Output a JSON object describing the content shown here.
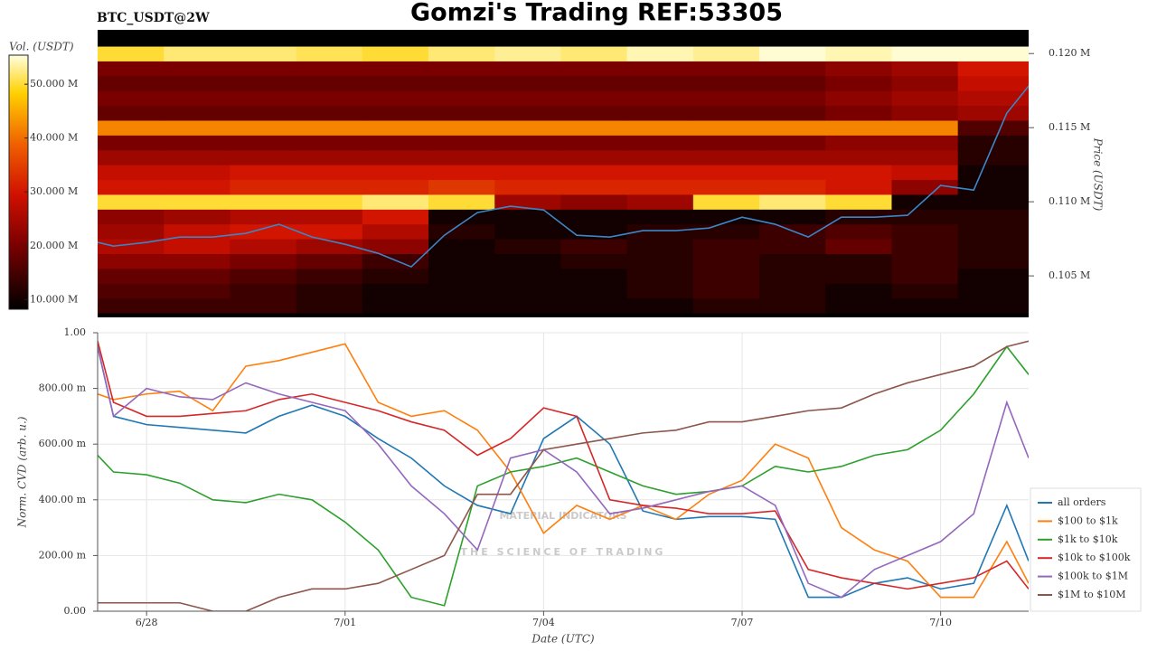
{
  "chart_data": [
    {
      "type": "heatmap",
      "title": "Gomzi's Trading REF:53305",
      "subtitle": "BTC_USDT@2W",
      "ylabel": "Price (USDT)",
      "colorbar_label": "Vol. (USDT)",
      "xlim": [
        -0.74,
        13.33
      ],
      "ylim": [
        102200,
        121600
      ],
      "yticks": [
        {
          "value": 105000,
          "label": "0.105 M"
        },
        {
          "value": 110000,
          "label": "0.110 M"
        },
        {
          "value": 115000,
          "label": "0.115 M"
        },
        {
          "value": 120000,
          "label": "0.120 M"
        }
      ],
      "zlim": [
        8200000,
        55400000
      ],
      "zticks": [
        {
          "value": 10000000,
          "label": "10.000 M"
        },
        {
          "value": 20000000,
          "label": "20.000 M"
        },
        {
          "value": 30000000,
          "label": "30.000 M"
        },
        {
          "value": 40000000,
          "label": "40.000 M"
        },
        {
          "value": 50000000,
          "label": "50.000 M"
        }
      ],
      "xbins": [
        -0.74,
        0.26,
        1.26,
        2.26,
        3.26,
        4.26,
        5.26,
        6.26,
        7.26,
        8.26,
        9.26,
        10.26,
        11.26,
        12.26,
        13.33
      ],
      "ybins": [
        102500,
        103500,
        104500,
        105500,
        106500,
        107500,
        108500,
        109500,
        110500,
        111500,
        112500,
        113500,
        114500,
        115500,
        116500,
        117500,
        118500,
        119500,
        120500,
        121500
      ],
      "z": [
        [
          14000000,
          14000000,
          14000000,
          12000000,
          10000000,
          10000000,
          10000000,
          10000000,
          10000000,
          12000000,
          12000000,
          10000000,
          10000000,
          10000000
        ],
        [
          16000000,
          16000000,
          14000000,
          12000000,
          10000000,
          10000000,
          10000000,
          10000000,
          12000000,
          14000000,
          12000000,
          10000000,
          12000000,
          10000000
        ],
        [
          18000000,
          18000000,
          16000000,
          14000000,
          12000000,
          10000000,
          10000000,
          10000000,
          12000000,
          14000000,
          12000000,
          12000000,
          14000000,
          10000000
        ],
        [
          22000000,
          22000000,
          20000000,
          18000000,
          14000000,
          10000000,
          10000000,
          12000000,
          12000000,
          14000000,
          12000000,
          12000000,
          14000000,
          12000000
        ],
        [
          26000000,
          28000000,
          26000000,
          24000000,
          22000000,
          10000000,
          12000000,
          14000000,
          12000000,
          14000000,
          14000000,
          18000000,
          14000000,
          12000000
        ],
        [
          24000000,
          28000000,
          30000000,
          30000000,
          26000000,
          12000000,
          10000000,
          10000000,
          12000000,
          12000000,
          14000000,
          16000000,
          14000000,
          12000000
        ],
        [
          22000000,
          24000000,
          26000000,
          26000000,
          30000000,
          10000000,
          10000000,
          10000000,
          10000000,
          10000000,
          10000000,
          12000000,
          12000000,
          12000000
        ],
        [
          50000000,
          50000000,
          50000000,
          50000000,
          52000000,
          50000000,
          24000000,
          22000000,
          24000000,
          50000000,
          52000000,
          50000000,
          10000000,
          10000000
        ],
        [
          30000000,
          30000000,
          32000000,
          32000000,
          32000000,
          34000000,
          32000000,
          32000000,
          32000000,
          32000000,
          32000000,
          30000000,
          22000000,
          10000000
        ],
        [
          28000000,
          28000000,
          30000000,
          30000000,
          30000000,
          30000000,
          30000000,
          30000000,
          30000000,
          30000000,
          30000000,
          30000000,
          28000000,
          10000000
        ],
        [
          24000000,
          24000000,
          24000000,
          24000000,
          24000000,
          24000000,
          24000000,
          24000000,
          24000000,
          24000000,
          24000000,
          24000000,
          24000000,
          12000000
        ],
        [
          20000000,
          20000000,
          20000000,
          20000000,
          20000000,
          20000000,
          20000000,
          20000000,
          20000000,
          20000000,
          20000000,
          22000000,
          22000000,
          12000000
        ],
        [
          42000000,
          42000000,
          42000000,
          42000000,
          42000000,
          42000000,
          42000000,
          42000000,
          42000000,
          42000000,
          42000000,
          42000000,
          42000000,
          16000000
        ],
        [
          18000000,
          18000000,
          18000000,
          18000000,
          18000000,
          18000000,
          18000000,
          18000000,
          18000000,
          18000000,
          18000000,
          20000000,
          22000000,
          24000000
        ],
        [
          20000000,
          20000000,
          20000000,
          20000000,
          20000000,
          20000000,
          20000000,
          20000000,
          20000000,
          20000000,
          20000000,
          22000000,
          24000000,
          26000000
        ],
        [
          18000000,
          18000000,
          18000000,
          18000000,
          18000000,
          18000000,
          18000000,
          18000000,
          18000000,
          18000000,
          18000000,
          20000000,
          22000000,
          28000000
        ],
        [
          20000000,
          20000000,
          20000000,
          20000000,
          20000000,
          20000000,
          20000000,
          20000000,
          20000000,
          20000000,
          20000000,
          22000000,
          24000000,
          30000000
        ],
        [
          50000000,
          52000000,
          52000000,
          51000000,
          50000000,
          52000000,
          53000000,
          52000000,
          54000000,
          53000000,
          55000000,
          54000000,
          55000000,
          55000000
        ],
        [
          8000000,
          8000000,
          8000000,
          8000000,
          8000000,
          8000000,
          8000000,
          8000000,
          8000000,
          8000000,
          8000000,
          8000000,
          8000000,
          8000000
        ]
      ],
      "line": {
        "color": "#3a86c8",
        "x": [
          -0.74,
          -0.5,
          0,
          0.5,
          1,
          1.5,
          2,
          2.5,
          3,
          3.5,
          4,
          4.5,
          5,
          5.5,
          6,
          6.5,
          7,
          7.5,
          8,
          8.5,
          9,
          9.5,
          10,
          10.5,
          11,
          11.5,
          12,
          12.5,
          13,
          13.33
        ],
        "values": [
          107260,
          107010,
          107260,
          107620,
          107620,
          107870,
          108480,
          107620,
          107130,
          106520,
          105610,
          107740,
          109270,
          109700,
          109450,
          107740,
          107620,
          108050,
          108050,
          108230,
          108960,
          108480,
          107620,
          108960,
          108960,
          109090,
          111100,
          110790,
          115980,
          117810
        ]
      }
    },
    {
      "type": "line",
      "xlabel": "Date (UTC)",
      "ylabel": "Norm. CVD (arb. u.)",
      "grid": true,
      "legend": "lower right",
      "annotations": [
        "MATERIAL INDICATORS",
        "THE SCIENCE OF TRADING"
      ],
      "xlim": [
        -0.74,
        13.33
      ],
      "ylim": [
        0,
        1
      ],
      "xticks": [
        {
          "value": 0,
          "label": "6/28"
        },
        {
          "value": 3,
          "label": "7/01"
        },
        {
          "value": 6,
          "label": "7/04"
        },
        {
          "value": 9,
          "label": "7/07"
        },
        {
          "value": 12,
          "label": "7/10"
        }
      ],
      "yticks": [
        {
          "value": 0,
          "label": "0.00"
        },
        {
          "value": 0.2,
          "label": "200.00 m"
        },
        {
          "value": 0.4,
          "label": "400.00 m"
        },
        {
          "value": 0.6,
          "label": "600.00 m"
        },
        {
          "value": 0.8,
          "label": "800.00 m"
        },
        {
          "value": 1,
          "label": "1.00"
        }
      ],
      "x": [
        -0.74,
        -0.5,
        0,
        0.5,
        1,
        1.5,
        2,
        2.5,
        3,
        3.5,
        4,
        4.5,
        5,
        5.5,
        6,
        6.5,
        7,
        7.5,
        8,
        8.5,
        9,
        9.5,
        10,
        10.5,
        11,
        11.5,
        12,
        12.5,
        13,
        13.33
      ],
      "series": [
        {
          "name": "all orders",
          "color": "#1f77b4",
          "values": [
            0.95,
            0.7,
            0.67,
            0.66,
            0.65,
            0.64,
            0.7,
            0.74,
            0.7,
            0.62,
            0.55,
            0.45,
            0.38,
            0.35,
            0.62,
            0.7,
            0.6,
            0.36,
            0.33,
            0.34,
            0.34,
            0.33,
            0.05,
            0.05,
            0.1,
            0.12,
            0.08,
            0.1,
            0.38,
            0.18
          ]
        },
        {
          "name": "$100 to $1k",
          "color": "#ff7f0e",
          "values": [
            0.78,
            0.76,
            0.78,
            0.79,
            0.72,
            0.88,
            0.9,
            0.93,
            0.96,
            0.75,
            0.7,
            0.72,
            0.65,
            0.5,
            0.28,
            0.38,
            0.33,
            0.38,
            0.33,
            0.42,
            0.47,
            0.6,
            0.55,
            0.3,
            0.22,
            0.18,
            0.05,
            0.05,
            0.25,
            0.1
          ]
        },
        {
          "name": "$1k to $10k",
          "color": "#2ca02c",
          "values": [
            0.56,
            0.5,
            0.49,
            0.46,
            0.4,
            0.39,
            0.42,
            0.4,
            0.32,
            0.22,
            0.05,
            0.02,
            0.45,
            0.5,
            0.52,
            0.55,
            0.5,
            0.45,
            0.42,
            0.43,
            0.45,
            0.52,
            0.5,
            0.52,
            0.56,
            0.58,
            0.65,
            0.78,
            0.95,
            0.85
          ]
        },
        {
          "name": "$10k to $100k",
          "color": "#d62728",
          "values": [
            0.97,
            0.75,
            0.7,
            0.7,
            0.71,
            0.72,
            0.76,
            0.78,
            0.75,
            0.72,
            0.68,
            0.65,
            0.56,
            0.62,
            0.73,
            0.7,
            0.4,
            0.38,
            0.37,
            0.35,
            0.35,
            0.36,
            0.15,
            0.12,
            0.1,
            0.08,
            0.1,
            0.12,
            0.18,
            0.08
          ]
        },
        {
          "name": "$100k to $1M",
          "color": "#9467bd",
          "values": [
            0.95,
            0.7,
            0.8,
            0.77,
            0.76,
            0.82,
            0.78,
            0.75,
            0.72,
            0.6,
            0.45,
            0.35,
            0.22,
            0.55,
            0.58,
            0.5,
            0.35,
            0.37,
            0.4,
            0.43,
            0.45,
            0.38,
            0.1,
            0.05,
            0.15,
            0.2,
            0.25,
            0.35,
            0.75,
            0.55
          ]
        },
        {
          "name": "$1M to $10M",
          "color": "#8c564b",
          "values": [
            0.03,
            0.03,
            0.03,
            0.03,
            0.0,
            0.0,
            0.05,
            0.08,
            0.08,
            0.1,
            0.15,
            0.2,
            0.42,
            0.42,
            0.58,
            0.6,
            0.62,
            0.64,
            0.65,
            0.68,
            0.68,
            0.7,
            0.72,
            0.73,
            0.78,
            0.82,
            0.85,
            0.88,
            0.95,
            0.97
          ]
        }
      ]
    }
  ]
}
